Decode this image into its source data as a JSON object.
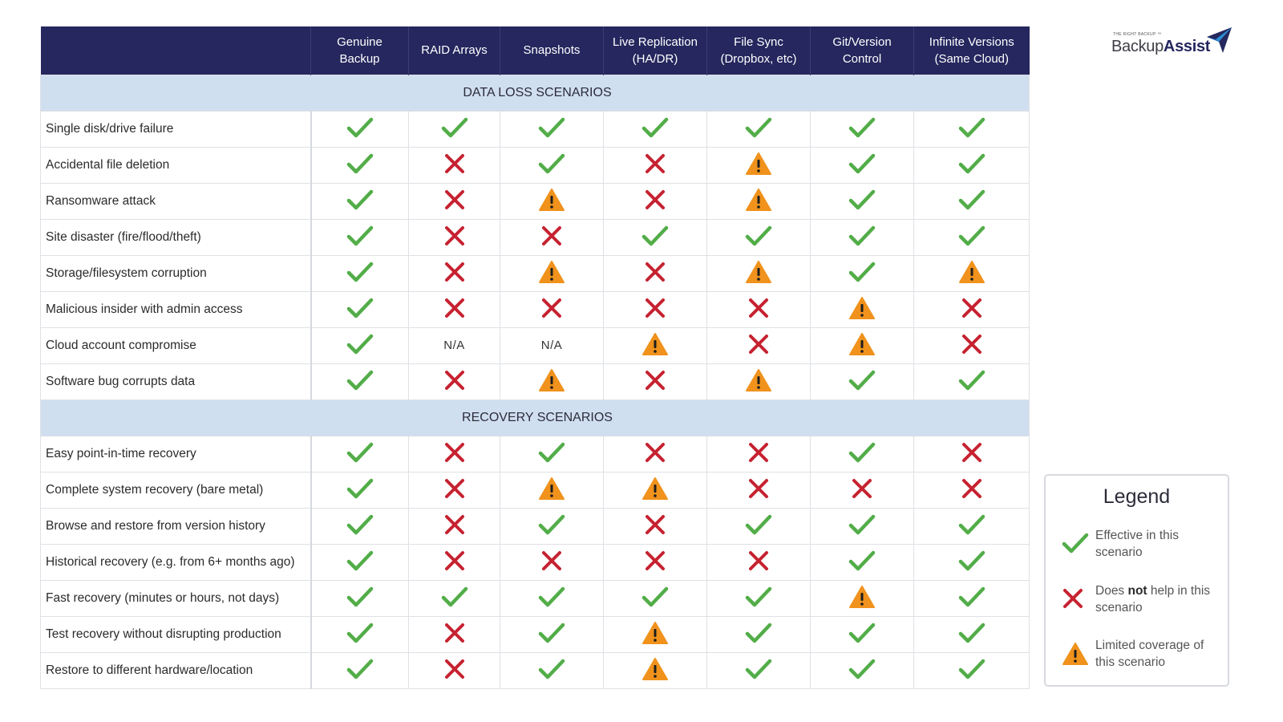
{
  "columns": [
    "Genuine\nBackup",
    "RAID Arrays",
    "Snapshots",
    "Live Replication\n(HA/DR)",
    "File Sync\n(Dropbox, etc)",
    "Git/Version\nControl",
    "Infinite Versions\n(Same Cloud)"
  ],
  "sections": [
    {
      "title": "DATA LOSS SCENARIOS",
      "rows": [
        {
          "label": "Single disk/drive failure",
          "cells": [
            "check",
            "check",
            "check",
            "check",
            "check",
            "check",
            "check"
          ]
        },
        {
          "label": "Accidental file deletion",
          "cells": [
            "check",
            "cross",
            "check",
            "cross",
            "warn",
            "check",
            "check"
          ]
        },
        {
          "label": "Ransomware attack",
          "cells": [
            "check",
            "cross",
            "warn",
            "cross",
            "warn",
            "check",
            "check"
          ]
        },
        {
          "label": "Site disaster (fire/flood/theft)",
          "cells": [
            "check",
            "cross",
            "cross",
            "check",
            "check",
            "check",
            "check"
          ]
        },
        {
          "label": "Storage/filesystem corruption",
          "cells": [
            "check",
            "cross",
            "warn",
            "cross",
            "warn",
            "check",
            "warn"
          ]
        },
        {
          "label": "Malicious insider with admin access",
          "cells": [
            "check",
            "cross",
            "cross",
            "cross",
            "cross",
            "warn",
            "cross"
          ]
        },
        {
          "label": "Cloud account compromise",
          "cells": [
            "check",
            "N/A",
            "N/A",
            "warn",
            "cross",
            "warn",
            "cross"
          ]
        },
        {
          "label": "Software bug corrupts data",
          "cells": [
            "check",
            "cross",
            "warn",
            "cross",
            "warn",
            "check",
            "check"
          ]
        }
      ]
    },
    {
      "title": "RECOVERY SCENARIOS",
      "rows": [
        {
          "label": "Easy point-in-time recovery",
          "cells": [
            "check",
            "cross",
            "check",
            "cross",
            "cross",
            "check",
            "cross"
          ]
        },
        {
          "label": "Complete system recovery (bare metal)",
          "cells": [
            "check",
            "cross",
            "warn",
            "warn",
            "cross",
            "cross",
            "cross"
          ]
        },
        {
          "label": "Browse and restore from version history",
          "cells": [
            "check",
            "cross",
            "check",
            "cross",
            "check",
            "check",
            "check"
          ]
        },
        {
          "label": "Historical recovery (e.g. from 6+ months ago)",
          "cells": [
            "check",
            "cross",
            "cross",
            "cross",
            "cross",
            "check",
            "check"
          ]
        },
        {
          "label": "Fast recovery (minutes or hours, not days)",
          "cells": [
            "check",
            "check",
            "check",
            "check",
            "check",
            "warn",
            "check"
          ]
        },
        {
          "label": "Test recovery without disrupting production",
          "cells": [
            "check",
            "cross",
            "check",
            "warn",
            "check",
            "check",
            "check"
          ]
        },
        {
          "label": "Restore to different hardware/location",
          "cells": [
            "check",
            "cross",
            "check",
            "warn",
            "check",
            "check",
            "check"
          ]
        }
      ]
    }
  ],
  "legend": {
    "title": "Legend",
    "items": [
      {
        "icon": "check",
        "parts": [
          "Effective in this scenario"
        ]
      },
      {
        "icon": "cross",
        "parts": [
          "Does ",
          "not",
          " help in this scenario"
        ]
      },
      {
        "icon": "warn",
        "parts": [
          "Limited coverage of this scenario"
        ]
      }
    ]
  },
  "logo": {
    "tagline": "THE RIGHT BACKUP ™",
    "name_regular": "Backup",
    "name_bold": "Assist"
  },
  "colors": {
    "header_bg": "#25275e",
    "section_bg": "#d0dff0",
    "check": "#52ad48",
    "cross": "#c62230",
    "warn": "#f0921c"
  }
}
